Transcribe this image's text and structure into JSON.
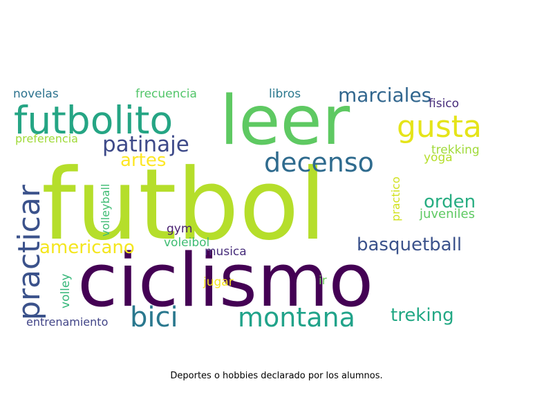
{
  "caption": "Deportes o hobbies declarado por los alumnos.",
  "palette": [
    "#440154",
    "#3b528b",
    "#21908c",
    "#5dc962",
    "#b2dd2c",
    "#fde725",
    "#2c728e",
    "#35b779",
    "#472d7b",
    "#27ad81"
  ],
  "words": [
    {
      "text": "futbol",
      "color": "#b5de2b",
      "rotate": false
    },
    {
      "text": "ciclismo",
      "color": "#440154",
      "rotate": false
    },
    {
      "text": "leer",
      "color": "#5ec962",
      "rotate": false
    },
    {
      "text": "futbolito",
      "color": "#25a584",
      "rotate": false
    },
    {
      "text": "practicar",
      "color": "#3b528b",
      "rotate": true
    },
    {
      "text": "montana",
      "color": "#21a38a",
      "rotate": false
    },
    {
      "text": "decenso",
      "color": "#2f6b8e",
      "rotate": false
    },
    {
      "text": "gusta",
      "color": "#e5e419",
      "rotate": false
    },
    {
      "text": "bici",
      "color": "#2a788e",
      "rotate": false
    },
    {
      "text": "patinaje",
      "color": "#3e4a89",
      "rotate": false
    },
    {
      "text": "marciales",
      "color": "#31668e",
      "rotate": false
    },
    {
      "text": "americano",
      "color": "#f4e61e",
      "rotate": false
    },
    {
      "text": "basquetball",
      "color": "#3b528b",
      "rotate": false
    },
    {
      "text": "orden",
      "color": "#27ad81",
      "rotate": false
    },
    {
      "text": "treking",
      "color": "#22a884",
      "rotate": false
    },
    {
      "text": "artes",
      "color": "#fde725",
      "rotate": false
    },
    {
      "text": "novelas",
      "color": "#2c728e",
      "rotate": false
    },
    {
      "text": "frecuencia",
      "color": "#52c569",
      "rotate": false
    },
    {
      "text": "libros",
      "color": "#2a788e",
      "rotate": false
    },
    {
      "text": "fisico",
      "color": "#472d7b",
      "rotate": false
    },
    {
      "text": "preferencia",
      "color": "#a0da39",
      "rotate": false
    },
    {
      "text": "trekking",
      "color": "#a0da39",
      "rotate": false
    },
    {
      "text": "yoga",
      "color": "#b5de2b",
      "rotate": false
    },
    {
      "text": "volleyball",
      "color": "#3fbc73",
      "rotate": true
    },
    {
      "text": "practico",
      "color": "#d0e11c",
      "rotate": true
    },
    {
      "text": "juveniles",
      "color": "#5ec962",
      "rotate": false
    },
    {
      "text": "gym",
      "color": "#481f70",
      "rotate": false
    },
    {
      "text": "voleibol",
      "color": "#3fbc73",
      "rotate": false
    },
    {
      "text": "musica",
      "color": "#472d7b",
      "rotate": false
    },
    {
      "text": "volley",
      "color": "#35b779",
      "rotate": true
    },
    {
      "text": "jugar",
      "color": "#f6e620",
      "rotate": false
    },
    {
      "text": "ir",
      "color": "#6ccd5a",
      "rotate": false
    },
    {
      "text": "entrenamiento",
      "color": "#414487",
      "rotate": false
    }
  ]
}
